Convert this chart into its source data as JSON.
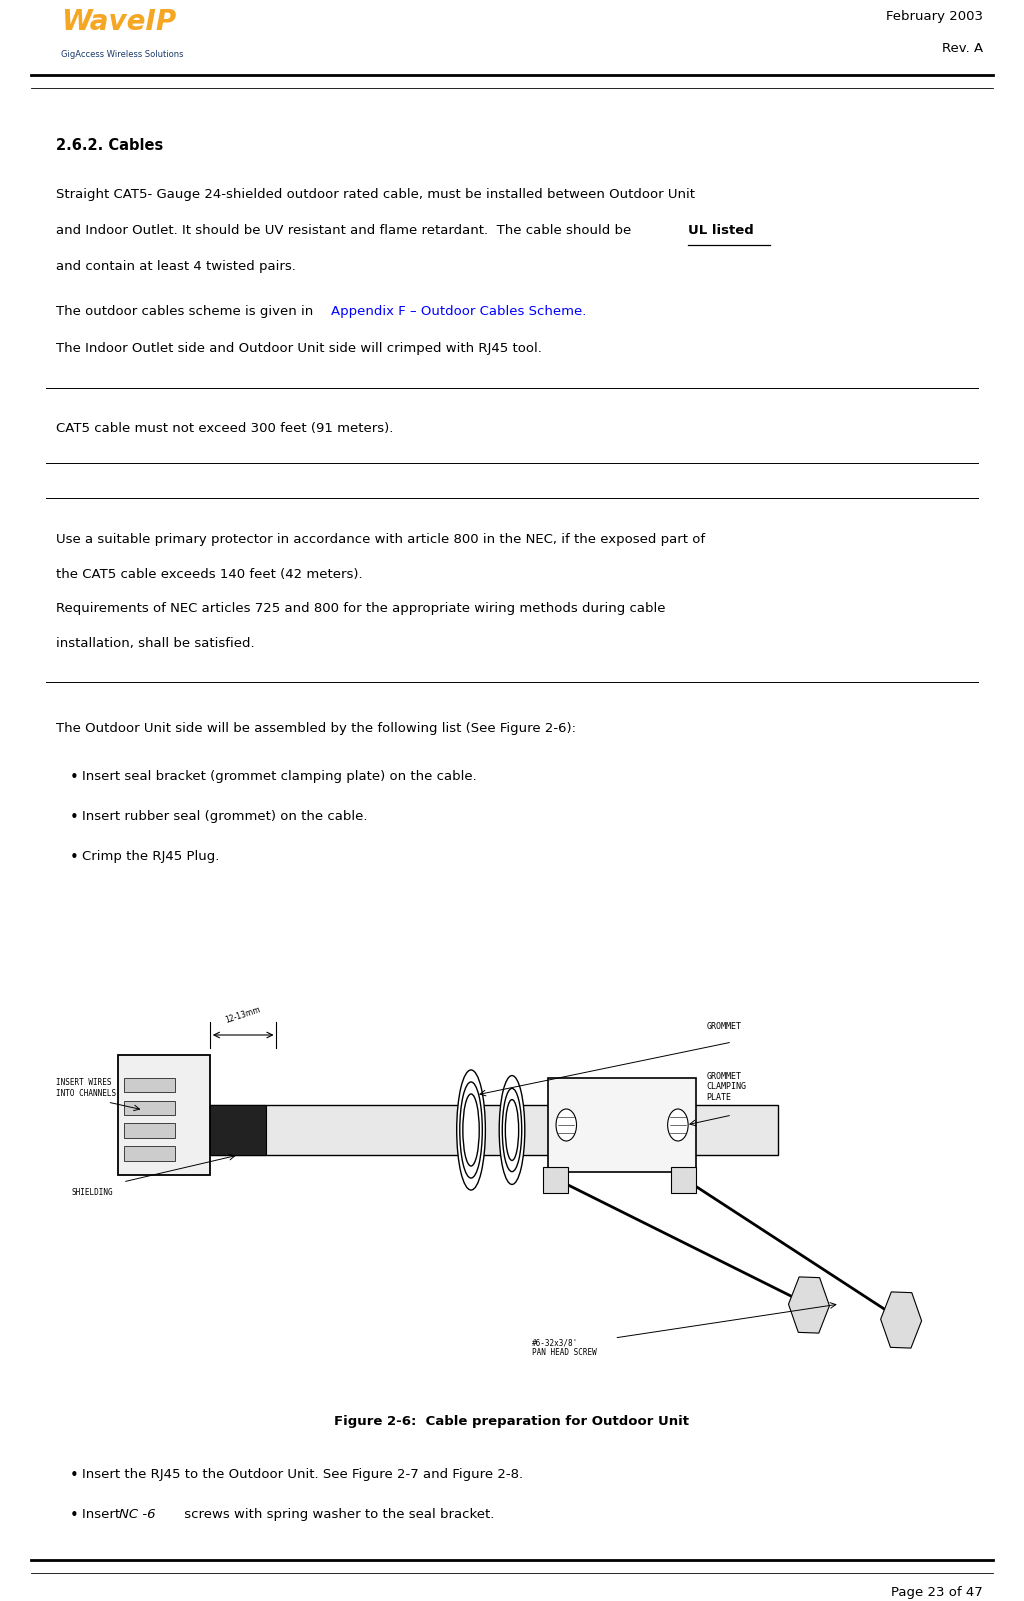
{
  "page_width": 10.24,
  "page_height": 16.01,
  "bg_color": "#ffffff",
  "header_date": "February 2003",
  "header_rev": "Rev. A",
  "footer_text": "Page 23 of 47",
  "section_title": "2.6.2. Cables",
  "para1_line1": "Straight CAT5- Gauge 24-shielded outdoor rated cable, must be installed between Outdoor Unit",
  "para1_line2": "and Indoor Outlet. It should be UV resistant and flame retardant.  The cable should be ",
  "para1_ul": "UL listed",
  "para1_line3": "and contain at least 4 twisted pairs.",
  "para2_normal": "The outdoor cables scheme is given in ",
  "para2_link": "Appendix F – Outdoor Cables Scheme.",
  "para3": "The Indoor Outlet side and Outdoor Unit side will crimped with RJ45 tool.",
  "note1": "CAT5 cable must not exceed 300 feet (91 meters).",
  "note2_line1": "Use a suitable primary protector in accordance with article 800 in the NEC, if the exposed part of",
  "note2_line2": "the CAT5 cable exceeds 140 feet (42 meters).",
  "note2_line3": "Requirements of NEC articles 725 and 800 for the appropriate wiring methods during cable",
  "note2_line4": "installation, shall be satisfied.",
  "assembly_intro": "The Outdoor Unit side will be assembled by the following list (See Figure 2-6):",
  "bullet1": "Insert seal bracket (grommet clamping plate) on the cable.",
  "bullet2": "Insert rubber seal (grommet) on the cable.",
  "bullet3": "Crimp the RJ45 Plug.",
  "fig_caption": "Figure 2-6:  Cable preparation for Outdoor Unit",
  "bullet4_line1": "Insert the RJ45 to the Outdoor Unit. See Figure 2-7 and Figure 2-8.",
  "bullet5_pre": "Insert ",
  "bullet5_italic": "NC -6",
  "bullet5_post": " screws with spring washer to the seal bracket.",
  "text_color": "#000000",
  "link_color": "#0000ff",
  "logo_orange": "#f5a623",
  "logo_blue": "#1a3a6b"
}
